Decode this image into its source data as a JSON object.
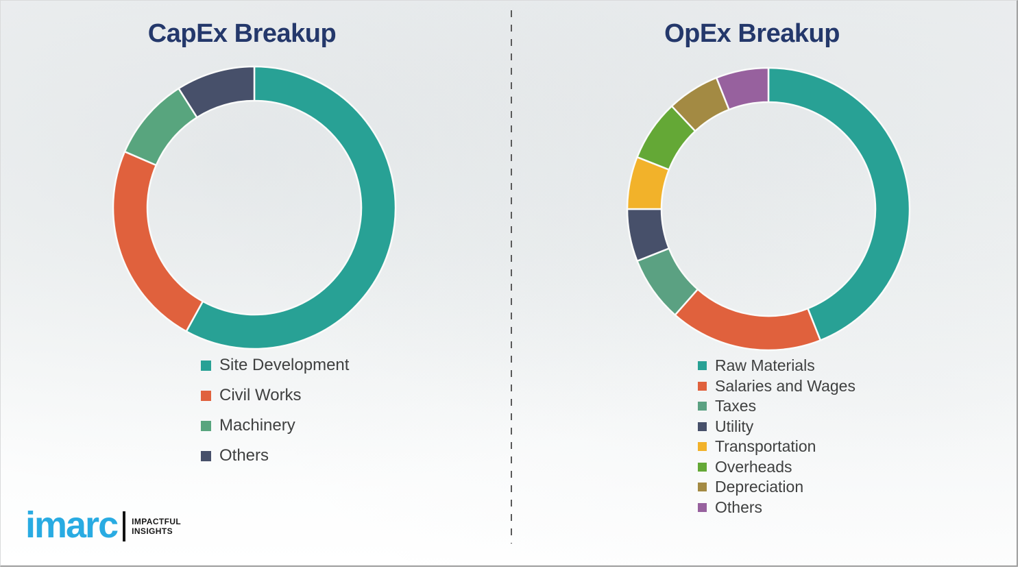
{
  "chart_data": [
    {
      "type": "pie",
      "subtype": "donut",
      "title": "CapEx Breakup",
      "title_color": "#24386b",
      "categories": [
        "Site Development",
        "Civil Works",
        "Machinery",
        "Others"
      ],
      "values": [
        58,
        23.5,
        9.5,
        9
      ],
      "colors": [
        "#28a195",
        "#e0613d",
        "#58a57e",
        "#47506a"
      ],
      "unit": "percent",
      "start_angle_deg": 0,
      "direction": "clockwise",
      "data_labels": "none",
      "legend_position": "below-chart-left"
    },
    {
      "type": "pie",
      "subtype": "donut",
      "title": "OpEx Breakup",
      "title_color": "#24386b",
      "categories": [
        "Raw Materials",
        "Salaries and Wages",
        "Taxes",
        "Utility",
        "Transportation",
        "Overheads",
        "Depreciation",
        "Others"
      ],
      "values": [
        44,
        17.5,
        7.5,
        6,
        6,
        7,
        6,
        6
      ],
      "colors": [
        "#28a195",
        "#e0613d",
        "#5ba182",
        "#47506a",
        "#f2b22a",
        "#64a836",
        "#a38a43",
        "#97619e"
      ],
      "unit": "percent",
      "start_angle_deg": 0,
      "direction": "clockwise",
      "data_labels": "none",
      "legend_position": "below-chart-left"
    }
  ],
  "legend_text_color": "#3f4040",
  "slice_separator_color": "#fafbfa",
  "logo": {
    "brand": "imarc",
    "brand_color": "#29abe2",
    "tagline_line1": "IMPACTFUL",
    "tagline_line2": "INSIGHTS"
  }
}
